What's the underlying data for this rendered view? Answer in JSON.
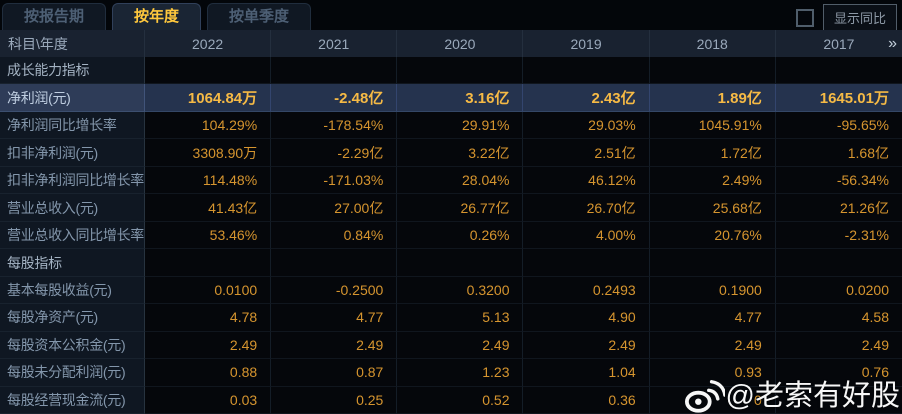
{
  "tabs": [
    {
      "label": "按报告期",
      "active": false
    },
    {
      "label": "按年度",
      "active": true
    },
    {
      "label": "按单季度",
      "active": false
    }
  ],
  "controls": {
    "yoy_checkbox_checked": false,
    "yoy_label": "显示同比"
  },
  "table": {
    "header": {
      "corner": "科目\\年度",
      "years": [
        "2022",
        "2021",
        "2020",
        "2019",
        "2018",
        "2017"
      ],
      "more_icon": "»"
    },
    "rows": [
      {
        "type": "section",
        "label": "成长能力指标",
        "values": [
          "",
          "",
          "",
          "",
          "",
          ""
        ]
      },
      {
        "type": "data",
        "highlighted": true,
        "label": "净利润(元)",
        "values": [
          "1064.84万",
          "-2.48亿",
          "3.16亿",
          "2.43亿",
          "1.89亿",
          "1645.01万"
        ]
      },
      {
        "type": "data",
        "label": "净利润同比增长率",
        "values": [
          "104.29%",
          "-178.54%",
          "29.91%",
          "29.03%",
          "1045.91%",
          "-95.65%"
        ]
      },
      {
        "type": "data",
        "label": "扣非净利润(元)",
        "values": [
          "3308.90万",
          "-2.29亿",
          "3.22亿",
          "2.51亿",
          "1.72亿",
          "1.68亿"
        ]
      },
      {
        "type": "data",
        "label": "扣非净利润同比增长率",
        "values": [
          "114.48%",
          "-171.03%",
          "28.04%",
          "46.12%",
          "2.49%",
          "-56.34%"
        ]
      },
      {
        "type": "data",
        "label": "营业总收入(元)",
        "values": [
          "41.43亿",
          "27.00亿",
          "26.77亿",
          "26.70亿",
          "25.68亿",
          "21.26亿"
        ]
      },
      {
        "type": "data",
        "label": "营业总收入同比增长率",
        "values": [
          "53.46%",
          "0.84%",
          "0.26%",
          "4.00%",
          "20.76%",
          "-2.31%"
        ]
      },
      {
        "type": "section",
        "label": "每股指标",
        "values": [
          "",
          "",
          "",
          "",
          "",
          ""
        ]
      },
      {
        "type": "data",
        "label": "基本每股收益(元)",
        "values": [
          "0.0100",
          "-0.2500",
          "0.3200",
          "0.2493",
          "0.1900",
          "0.0200"
        ]
      },
      {
        "type": "data",
        "label": "每股净资产(元)",
        "values": [
          "4.78",
          "4.77",
          "5.13",
          "4.90",
          "4.77",
          "4.58"
        ]
      },
      {
        "type": "data",
        "label": "每股资本公积金(元)",
        "values": [
          "2.49",
          "2.49",
          "2.49",
          "2.49",
          "2.49",
          "2.49"
        ]
      },
      {
        "type": "data",
        "label": "每股未分配利润(元)",
        "values": [
          "0.88",
          "0.87",
          "1.23",
          "1.04",
          "0.93",
          "0.76"
        ]
      },
      {
        "type": "data",
        "label": "每股经营现金流(元)",
        "values": [
          "0.03",
          "0.25",
          "0.52",
          "0.36",
          "0",
          ""
        ]
      }
    ]
  },
  "watermark": {
    "icon": "weibo-icon",
    "text": "@老索有好股"
  },
  "colors": {
    "background": "#03060a",
    "tab_active_text": "#ffc83d",
    "tab_inactive_text": "#4d5f74",
    "header_bg": "#192230",
    "label_col_bg": "#0f1722",
    "label_text": "#8396ab",
    "value_text": "#d6952f",
    "highlight_row_bg": "#25334e",
    "highlight_value_text": "#f6ba45",
    "watermark_text": "#f7f7f7"
  }
}
